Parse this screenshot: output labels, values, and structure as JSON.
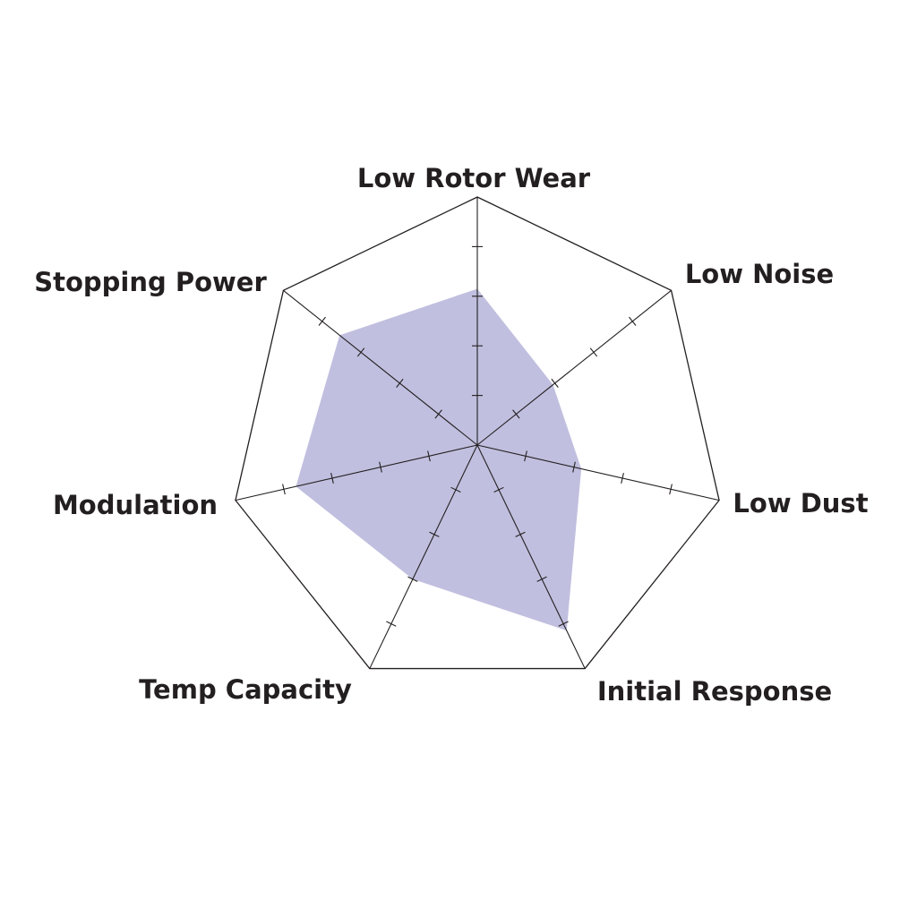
{
  "chart_data": {
    "type": "radar",
    "axes": [
      "Low Rotor Wear",
      "Low Noise",
      "Low Dust",
      "Initial Response",
      "Temp Capacity",
      "Modulation",
      "Stopping Power"
    ],
    "range": [
      0,
      10
    ],
    "tick_count": 4,
    "series": [
      {
        "values": [
          6.3,
          3.9,
          4.3,
          8.3,
          6.0,
          7.5,
          7.1
        ],
        "color": "#c0bfdf"
      }
    ],
    "grid": true,
    "line_color": "#231f20"
  }
}
